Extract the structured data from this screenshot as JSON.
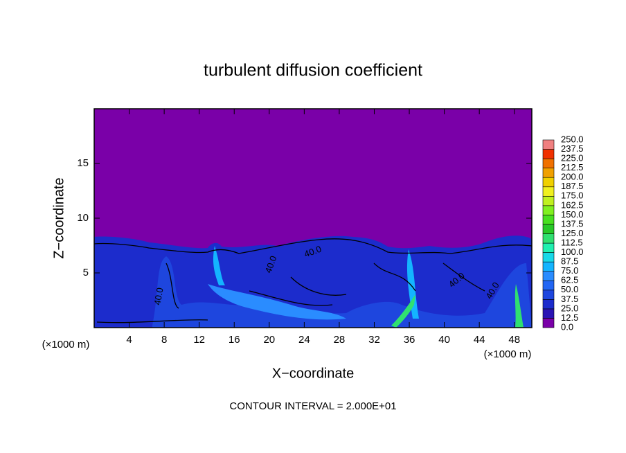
{
  "chart_data": {
    "type": "contour",
    "title": "turbulent diffusion coefficient",
    "x_label": "X−coordinate",
    "y_label": "Z−coordinate",
    "x_unit": "(×1000 m)",
    "x_unit_right": "(×1000 m)",
    "footer": "CONTOUR INTERVAL = 2.000E+01",
    "xlim": [
      0,
      50
    ],
    "ylim": [
      0,
      20
    ],
    "xticks": [
      4,
      8,
      12,
      16,
      20,
      24,
      28,
      32,
      36,
      40,
      44,
      48
    ],
    "yticks": [
      5,
      10,
      15
    ],
    "levels": [
      {
        "value": 0,
        "label": "0.0"
      },
      {
        "value": 12.5,
        "label": "12.5"
      },
      {
        "value": 25,
        "label": "25.0"
      },
      {
        "value": 37.5,
        "label": "37.5"
      },
      {
        "value": 50,
        "label": "50.0"
      },
      {
        "value": 62.5,
        "label": "62.5"
      },
      {
        "value": 75,
        "label": "75.0"
      },
      {
        "value": 87.5,
        "label": "87.5"
      },
      {
        "value": 100,
        "label": "100.0"
      },
      {
        "value": 112.5,
        "label": "112.5"
      },
      {
        "value": 125,
        "label": "125.0"
      },
      {
        "value": 137.5,
        "label": "137.5"
      },
      {
        "value": 150,
        "label": "150.0"
      },
      {
        "value": 162.5,
        "label": "162.5"
      },
      {
        "value": 175,
        "label": "175.0"
      },
      {
        "value": 187.5,
        "label": "187.5"
      },
      {
        "value": 200,
        "label": "200.0"
      },
      {
        "value": 212.5,
        "label": "212.5"
      },
      {
        "value": 225,
        "label": "225.0"
      },
      {
        "value": 237.5,
        "label": "237.5"
      },
      {
        "value": 250,
        "label": "250.0"
      }
    ],
    "colors": [
      "#7a00a8",
      "#2a14b4",
      "#1c2ccc",
      "#1e46de",
      "#2266f4",
      "#2a8cff",
      "#14b4ff",
      "#18d8e8",
      "#20f0b0",
      "#30e070",
      "#28c828",
      "#48e020",
      "#80f020",
      "#c0f020",
      "#f0f020",
      "#f0d000",
      "#f0a000",
      "#f07000",
      "#f03000",
      "#f08080"
    ],
    "contour_labels": [
      {
        "value": 40,
        "label": "40.0"
      },
      {
        "value": 40,
        "label": "40.0"
      },
      {
        "value": 40,
        "label": "40.0"
      },
      {
        "value": 40,
        "label": "40.0"
      },
      {
        "value": 40,
        "label": "40.0"
      }
    ]
  }
}
